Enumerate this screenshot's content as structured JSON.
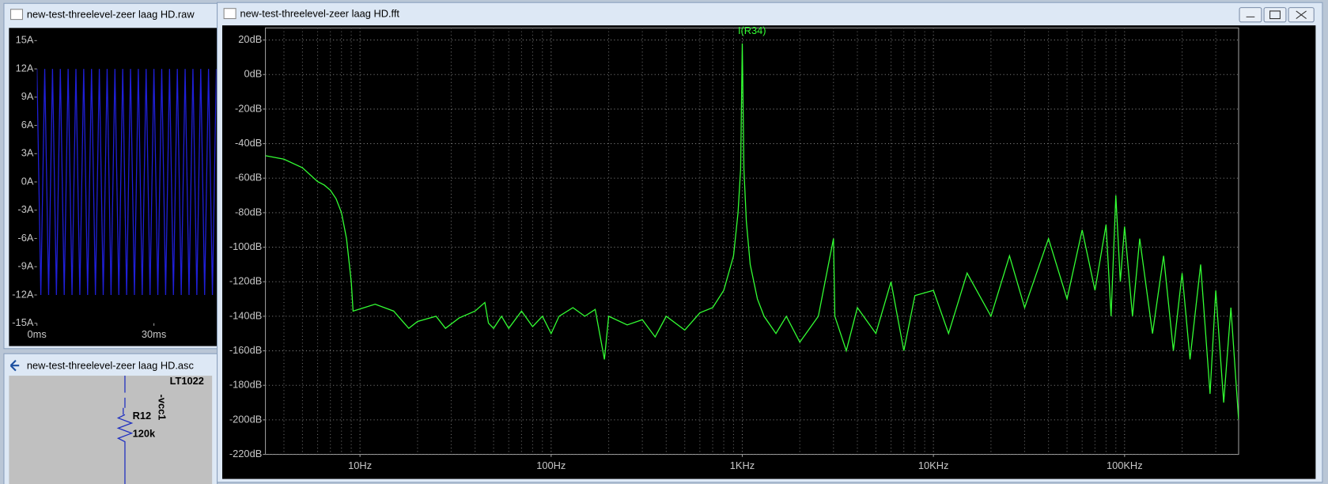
{
  "windows": [
    {
      "title": "new-test-threelevel-zeer laag HD.raw"
    },
    {
      "title": "new-test-threelevel-zeer laag HD.fft"
    },
    {
      "title": "new-test-threelevel-zeer laag HD.asc"
    }
  ],
  "schematic": {
    "labels": [
      "LT1022",
      "-vcc1",
      "R12",
      "120k"
    ]
  },
  "chart_data": [
    {
      "type": "line",
      "color": "#1f1fd8",
      "x": [
        0,
        1,
        2,
        3,
        4,
        5,
        6,
        7,
        8,
        9,
        10,
        11,
        12,
        13,
        14,
        15,
        16,
        17,
        18,
        19,
        20,
        21,
        22,
        23,
        24,
        25,
        26,
        27,
        28,
        29,
        30,
        31,
        32,
        33,
        34,
        35,
        36,
        37,
        38,
        39,
        40,
        41,
        42,
        43,
        44,
        45,
        46
      ],
      "values": [
        12,
        -12,
        12,
        -12,
        12,
        -12,
        12,
        -12,
        12,
        -12,
        12,
        -12,
        12,
        -12,
        12,
        -12,
        12,
        -12,
        12,
        -12,
        12,
        -12,
        12,
        -12,
        12,
        -12,
        12,
        -12,
        12,
        -12,
        12,
        -12,
        12,
        -12,
        12,
        -12,
        12,
        -12,
        12,
        -12,
        12,
        -12,
        12,
        -12,
        12,
        -12,
        12
      ],
      "xlim": [
        0,
        46
      ],
      "xticks": [
        {
          "value": 0,
          "label": "0ms"
        },
        {
          "value": 30,
          "label": "30ms"
        }
      ],
      "ylim": [
        -15,
        15
      ],
      "yticks": [
        {
          "value": 15,
          "label": "15A"
        },
        {
          "value": 12,
          "label": "12A"
        },
        {
          "value": 9,
          "label": "9A"
        },
        {
          "value": 6,
          "label": "6A"
        },
        {
          "value": 3,
          "label": "3A"
        },
        {
          "value": 0,
          "label": "0A"
        },
        {
          "value": -3,
          "label": "-3A"
        },
        {
          "value": -6,
          "label": "-6A"
        },
        {
          "value": -9,
          "label": "-9A"
        },
        {
          "value": -12,
          "label": "-12A"
        },
        {
          "value": -15,
          "label": "-15A"
        }
      ],
      "grid": false
    },
    {
      "type": "line",
      "log_x": true,
      "grid": true,
      "series": [
        {
          "name": "I(R34)",
          "color": "#33ff33",
          "x": [
            3.2,
            4,
            5,
            6,
            6.5,
            7,
            7.5,
            8,
            8.5,
            9,
            9.2,
            12,
            15,
            18,
            20,
            25,
            28,
            33,
            40,
            45,
            47,
            50,
            55,
            60,
            70,
            80,
            90,
            100,
            110,
            130,
            150,
            170,
            190,
            200,
            250,
            300,
            350,
            400,
            500,
            600,
            700,
            800,
            900,
            950,
            980,
            1000,
            1020,
            1050,
            1100,
            1200,
            1300,
            1500,
            1700,
            2000,
            2500,
            3000,
            3050,
            3500,
            4000,
            5000,
            6000,
            7000,
            8000,
            10000,
            12000,
            15000,
            20000,
            25000,
            30000,
            40000,
            50000,
            60000,
            70000,
            80000,
            85000,
            90000,
            95000,
            100000,
            110000,
            120000,
            140000,
            160000,
            180000,
            200000,
            220000,
            250000,
            280000,
            300000,
            330000,
            360000,
            395000
          ],
          "values": [
            -47,
            -49,
            -54,
            -62,
            -64,
            -67,
            -72,
            -80,
            -95,
            -120,
            -137,
            -133,
            -137,
            -147,
            -143,
            -140,
            -147,
            -141,
            -137,
            -132,
            -144,
            -147,
            -140,
            -147,
            -137,
            -146,
            -140,
            -150,
            -140,
            -135,
            -140,
            -136,
            -165,
            -140,
            -145,
            -142,
            -152,
            -140,
            -148,
            -138,
            -135,
            -125,
            -105,
            -80,
            -55,
            18,
            -55,
            -85,
            -110,
            -130,
            -140,
            -150,
            -140,
            -155,
            -140,
            -95,
            -140,
            -160,
            -135,
            -150,
            -120,
            -160,
            -128,
            -125,
            -150,
            -115,
            -140,
            -105,
            -135,
            -95,
            -130,
            -90,
            -125,
            -87,
            -140,
            -70,
            -120,
            -88,
            -140,
            -95,
            -150,
            -105,
            -160,
            -115,
            -165,
            -110,
            -185,
            -125,
            -190,
            -135,
            -200
          ]
        }
      ],
      "xlim": [
        3.2,
        395000
      ],
      "xticks": [
        {
          "value": 10,
          "label": "10Hz"
        },
        {
          "value": 100,
          "label": "100Hz"
        },
        {
          "value": 1000,
          "label": "1KHz"
        },
        {
          "value": 10000,
          "label": "10KHz"
        },
        {
          "value": 100000,
          "label": "100KHz"
        }
      ],
      "xminor_ticks": [
        4,
        5,
        6,
        7,
        8,
        9,
        20,
        30,
        40,
        50,
        60,
        70,
        80,
        90,
        200,
        300,
        400,
        500,
        600,
        700,
        800,
        900,
        2000,
        3000,
        4000,
        5000,
        6000,
        7000,
        8000,
        9000,
        20000,
        30000,
        40000,
        50000,
        60000,
        70000,
        80000,
        90000,
        200000,
        300000
      ],
      "ylim": [
        -220,
        27
      ],
      "yticks": [
        {
          "value": 20,
          "label": "20dB"
        },
        {
          "value": 0,
          "label": "0dB"
        },
        {
          "value": -20,
          "label": "-20dB"
        },
        {
          "value": -40,
          "label": "-40dB"
        },
        {
          "value": -60,
          "label": "-60dB"
        },
        {
          "value": -80,
          "label": "-80dB"
        },
        {
          "value": -100,
          "label": "-100dB"
        },
        {
          "value": -120,
          "label": "-120dB"
        },
        {
          "value": -140,
          "label": "-140dB"
        },
        {
          "value": -160,
          "label": "-160dB"
        },
        {
          "value": -180,
          "label": "-180dB"
        },
        {
          "value": -200,
          "label": "-200dB"
        },
        {
          "value": -220,
          "label": "-220dB"
        }
      ]
    }
  ]
}
